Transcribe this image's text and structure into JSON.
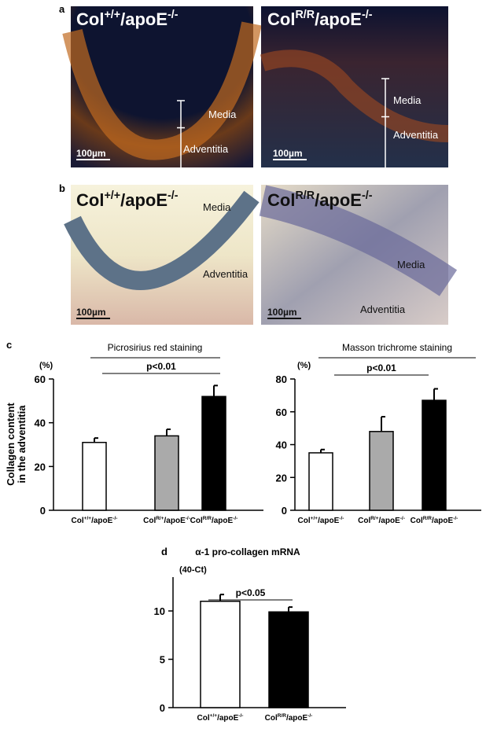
{
  "panel_letters": [
    "a",
    "b",
    "c",
    "d"
  ],
  "micrographs": {
    "a_left": {
      "label": [
        "Col",
        "+/+",
        "/apoE",
        "-/-"
      ],
      "media": "Media",
      "adventitia": "Adventitia",
      "scale": "100µm"
    },
    "a_right": {
      "label": [
        "Col",
        "R/R",
        "/apoE",
        "-/-"
      ],
      "media": "Media",
      "adventitia": "Adventitia",
      "scale": "100µm"
    },
    "b_left": {
      "label": [
        "Col",
        "+/+",
        "/apoE",
        "-/-"
      ],
      "media": "Media",
      "adventitia": "Adventitia",
      "scale": "100µm"
    },
    "b_right": {
      "label": [
        "Col",
        "R/R",
        "/apoE",
        "-/-"
      ],
      "media": "Media",
      "adventitia": "Adventitia",
      "scale": "100µm"
    }
  },
  "chart_data": [
    {
      "type": "bar",
      "title": "Picrosirius red staining",
      "unit": "(%)",
      "ylabel": [
        "Collagen content",
        "in the adventitia"
      ],
      "significance": "p<0.01",
      "categories": [
        [
          "Col",
          "+/+",
          "/apoE",
          "-/-"
        ],
        [
          "Col",
          "R/+",
          "/apoE",
          "-/-"
        ],
        [
          "Col",
          "R/R",
          "/apoE",
          "-/-"
        ]
      ],
      "values": [
        31,
        34,
        52
      ],
      "errors": [
        2,
        3,
        5
      ],
      "colors": [
        "#ffffff",
        "#aaaaaa",
        "#000000"
      ],
      "ylim": [
        0,
        60
      ],
      "yticks": [
        0,
        20,
        40,
        60
      ]
    },
    {
      "type": "bar",
      "title": "Masson trichrome staining",
      "unit": "(%)",
      "significance": "p<0.01",
      "categories": [
        [
          "Col",
          "+/+",
          "/apoE",
          "-/-"
        ],
        [
          "Col",
          "R/+",
          "/apoE",
          "-/-"
        ],
        [
          "Col",
          "R/R",
          "/apoE",
          "-/-"
        ]
      ],
      "values": [
        35,
        48,
        67
      ],
      "errors": [
        2,
        9,
        7
      ],
      "colors": [
        "#ffffff",
        "#aaaaaa",
        "#000000"
      ],
      "ylim": [
        0,
        80
      ],
      "yticks": [
        0,
        20,
        40,
        60,
        80
      ]
    },
    {
      "type": "bar",
      "title": "α-1 pro-collagen mRNA",
      "unit": "(40-Ct)",
      "significance": "p<0.05",
      "categories": [
        [
          "Col",
          "+/+",
          "/apoE",
          "-/-"
        ],
        [
          "Col",
          "R/R",
          "/apoE",
          "-/-"
        ]
      ],
      "values": [
        11,
        9.9
      ],
      "errors": [
        0.7,
        0.5
      ],
      "colors": [
        "#ffffff",
        "#000000"
      ],
      "ylim": [
        0,
        13.5
      ],
      "yticks": [
        0,
        5,
        10
      ]
    }
  ]
}
